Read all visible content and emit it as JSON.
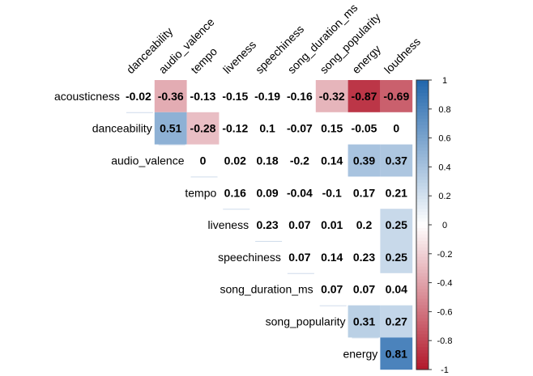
{
  "chart_data": {
    "type": "heatmap",
    "subtype": "upper-triangular correlation matrix",
    "column_labels": [
      "danceability",
      "audio_valence",
      "tempo",
      "liveness",
      "speechiness",
      "song_duration_ms",
      "song_popularity",
      "energy",
      "loudness"
    ],
    "row_labels": [
      "acousticness",
      "danceability",
      "audio_valence",
      "tempo",
      "liveness",
      "speechiness",
      "song_duration_ms",
      "song_popularity",
      "energy"
    ],
    "rows": [
      [
        -0.02,
        -0.36,
        -0.13,
        -0.15,
        -0.19,
        -0.16,
        -0.32,
        -0.87,
        -0.69
      ],
      [
        0.51,
        -0.28,
        -0.12,
        0.1,
        -0.07,
        0.15,
        -0.05,
        0
      ],
      [
        0,
        0.02,
        0.18,
        -0.2,
        0.14,
        0.39,
        0.37
      ],
      [
        0.16,
        0.09,
        -0.04,
        -0.1,
        0.17,
        0.21
      ],
      [
        0.23,
        0.07,
        0.01,
        0.2,
        0.25
      ],
      [
        0.07,
        0.14,
        0.23,
        0.25
      ],
      [
        0.07,
        0.07,
        0.04
      ],
      [
        0.31,
        0.27
      ],
      [
        0.81
      ]
    ],
    "color_threshold": 0.25,
    "colorbar": {
      "range": [
        -1,
        1
      ],
      "ticks": [
        "1",
        "0.8",
        "0.6",
        "0.4",
        "0.2",
        "0",
        "-0.2",
        "-0.4",
        "-0.6",
        "-0.8",
        "-1"
      ],
      "low_color": "#b2182b",
      "mid_color": "#ffffff",
      "high_color": "#2166ac"
    }
  }
}
